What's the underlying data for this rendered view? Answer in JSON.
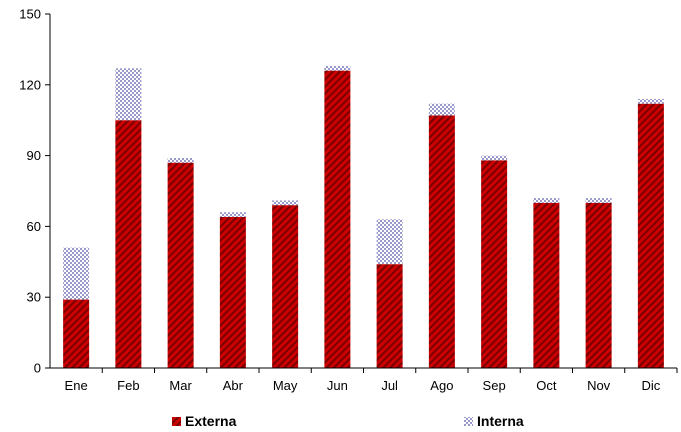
{
  "chart_data": {
    "type": "bar",
    "stacked": true,
    "categories": [
      "Ene",
      "Feb",
      "Mar",
      "Abr",
      "May",
      "Jun",
      "Jul",
      "Ago",
      "Sep",
      "Oct",
      "Nov",
      "Dic"
    ],
    "series": [
      {
        "name": "Externa",
        "color": "#cc0000",
        "pattern": "diagonal-hatch",
        "values": [
          29,
          105,
          87,
          64,
          69,
          126,
          44,
          107,
          88,
          70,
          70,
          112
        ]
      },
      {
        "name": "Interna",
        "color": "#9999cc",
        "pattern": "checkerboard",
        "values": [
          22,
          22,
          2,
          2,
          2,
          2,
          19,
          5,
          2,
          2,
          2,
          2
        ]
      }
    ],
    "ylim": [
      0,
      150
    ],
    "yticks": [
      0,
      30,
      60,
      90,
      120,
      150
    ],
    "grid": false,
    "legend_position": "bottom"
  }
}
